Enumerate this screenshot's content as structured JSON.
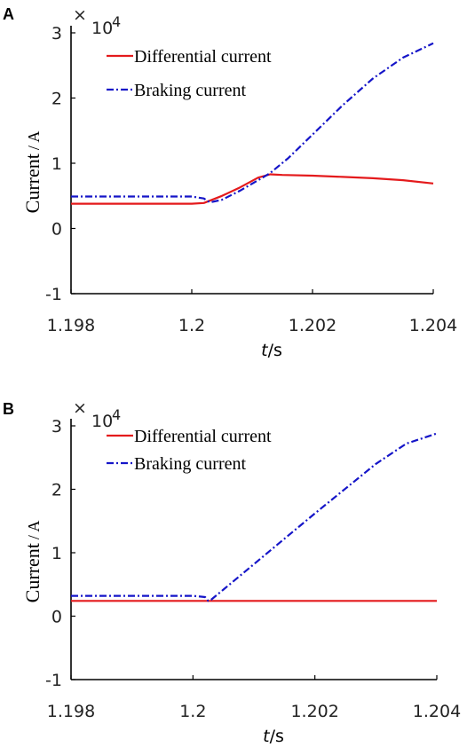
{
  "chart_data": [
    {
      "type": "line",
      "panel_label": "A",
      "x_exponent_prefix": "×",
      "y_multiplier": "10",
      "y_multiplier_power": "4",
      "ylabel_main": "Current",
      "ylabel_unit": "/ A",
      "xlabel_italic": "t",
      "xlabel_rest": "/s",
      "xlim": [
        1.198,
        1.204
      ],
      "ylim": [
        -1,
        3
      ],
      "xticks": [
        "1.198",
        "1.2",
        "1.202",
        "1.204"
      ],
      "xtick_values": [
        1.198,
        1.2,
        1.202,
        1.204
      ],
      "yticks": [
        "-1",
        "0",
        "1",
        "2",
        "3"
      ],
      "ytick_values": [
        -1,
        0,
        1,
        2,
        3
      ],
      "legend_position": "top-left",
      "series": [
        {
          "name": "Differential current",
          "color": "#e41a1c",
          "style": "solid",
          "points": [
            [
              1.198,
              0.38
            ],
            [
              1.1995,
              0.38
            ],
            [
              1.2,
              0.38
            ],
            [
              1.2002,
              0.39
            ],
            [
              1.2005,
              0.5
            ],
            [
              1.2008,
              0.63
            ],
            [
              1.2011,
              0.78
            ],
            [
              1.2013,
              0.83
            ],
            [
              1.2015,
              0.82
            ],
            [
              1.202,
              0.81
            ],
            [
              1.2025,
              0.79
            ],
            [
              1.203,
              0.77
            ],
            [
              1.2035,
              0.74
            ],
            [
              1.204,
              0.69
            ]
          ]
        },
        {
          "name": "Braking current",
          "color": "#1515c8",
          "style": "dashdot",
          "points": [
            [
              1.198,
              0.49
            ],
            [
              1.1995,
              0.49
            ],
            [
              1.2,
              0.49
            ],
            [
              1.2002,
              0.46
            ],
            [
              1.2003,
              0.4
            ],
            [
              1.2005,
              0.44
            ],
            [
              1.2008,
              0.58
            ],
            [
              1.2011,
              0.74
            ],
            [
              1.2013,
              0.85
            ],
            [
              1.2016,
              1.08
            ],
            [
              1.202,
              1.44
            ],
            [
              1.2025,
              1.89
            ],
            [
              1.203,
              2.3
            ],
            [
              1.2035,
              2.62
            ],
            [
              1.204,
              2.84
            ]
          ]
        }
      ]
    },
    {
      "type": "line",
      "panel_label": "B",
      "x_exponent_prefix": "×",
      "y_multiplier": "10",
      "y_multiplier_power": "4",
      "ylabel_main": "Current",
      "ylabel_unit": "/ A",
      "xlabel_italic": "t",
      "xlabel_rest": "/s",
      "xlim": [
        1.198,
        1.204
      ],
      "ylim": [
        -1,
        3
      ],
      "xticks": [
        "1.198",
        "1.2",
        "1.202",
        "1.204"
      ],
      "xtick_values": [
        1.198,
        1.2,
        1.202,
        1.204
      ],
      "yticks": [
        "-1",
        "0",
        "1",
        "2",
        "3"
      ],
      "ytick_values": [
        -1,
        0,
        1,
        2,
        3
      ],
      "legend_position": "top-left",
      "series": [
        {
          "name": "Differential current",
          "color": "#e41a1c",
          "style": "solid",
          "points": [
            [
              1.198,
              0.24
            ],
            [
              1.204,
              0.24
            ]
          ]
        },
        {
          "name": "Braking current",
          "color": "#1515c8",
          "style": "dashdot",
          "points": [
            [
              1.198,
              0.32
            ],
            [
              1.2,
              0.32
            ],
            [
              1.2002,
              0.3
            ],
            [
              1.20025,
              0.24
            ],
            [
              1.2003,
              0.26
            ],
            [
              1.2005,
              0.42
            ],
            [
              1.201,
              0.82
            ],
            [
              1.2015,
              1.22
            ],
            [
              1.202,
              1.62
            ],
            [
              1.2025,
              2.01
            ],
            [
              1.203,
              2.4
            ],
            [
              1.2035,
              2.72
            ],
            [
              1.204,
              2.88
            ]
          ]
        }
      ]
    }
  ]
}
